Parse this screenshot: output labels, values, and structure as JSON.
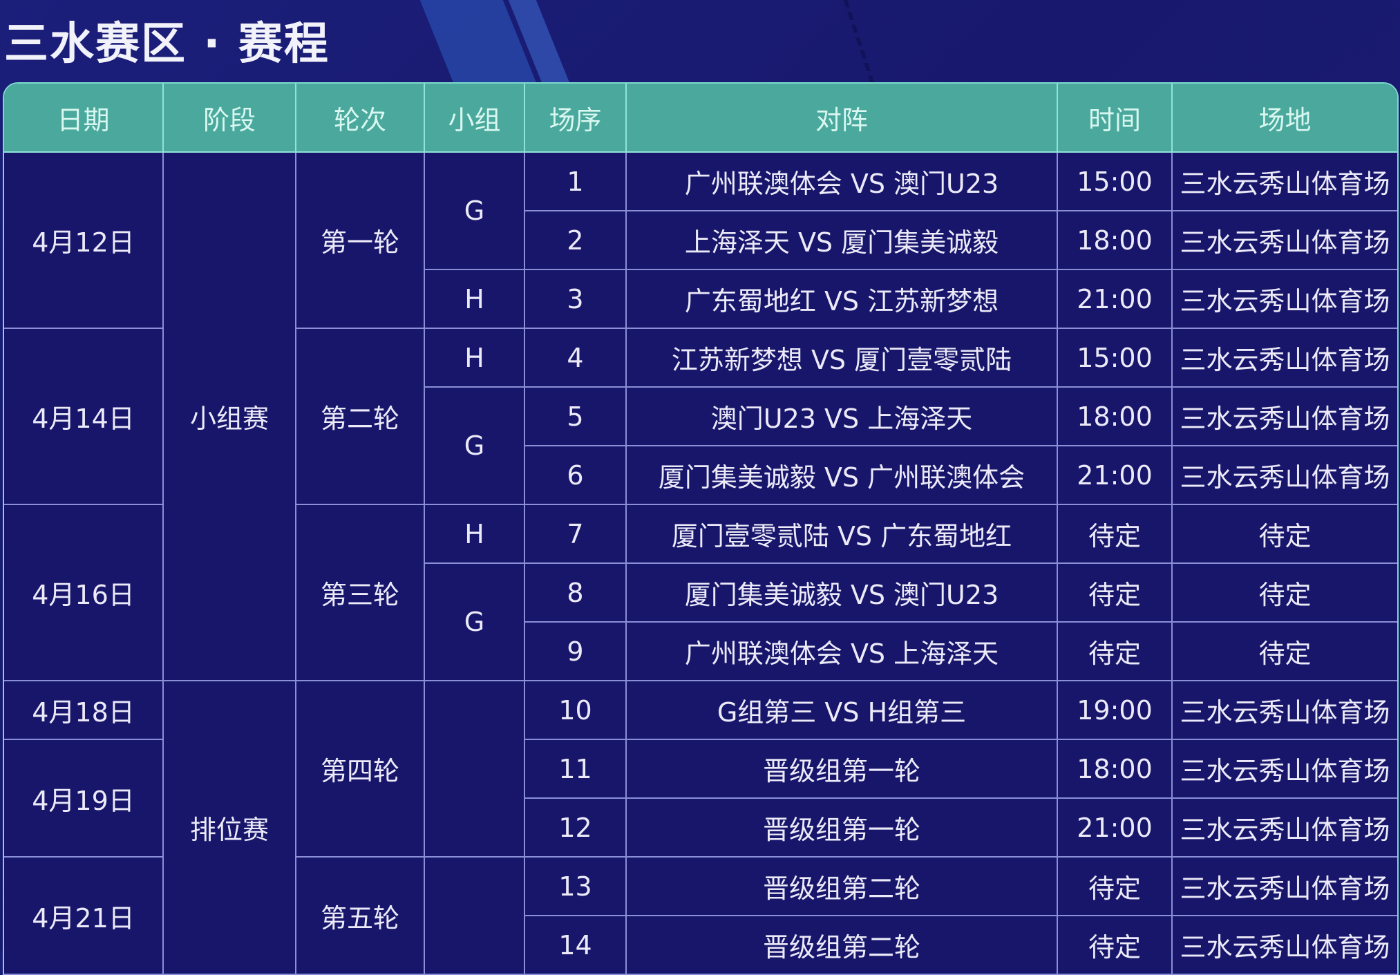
{
  "title": "三水赛区 · 赛程",
  "headers": [
    "日期",
    "阶段",
    "轮次",
    "小组",
    "场序",
    "对阵",
    "时间",
    "场地"
  ],
  "dates": [
    {
      "label": "4月12日",
      "span": 3
    },
    {
      "label": "4月14日",
      "span": 3
    },
    {
      "label": "4月16日",
      "span": 3
    },
    {
      "label": "4月18日",
      "span": 1
    },
    {
      "label": "4月19日",
      "span": 2
    },
    {
      "label": "4月21日",
      "span": 2
    }
  ],
  "stages": [
    {
      "label": "小组赛",
      "span": 9
    },
    {
      "label": "排位赛",
      "span": 5
    }
  ],
  "rounds": [
    {
      "label": "第一轮",
      "span": 3
    },
    {
      "label": "第二轮",
      "span": 3
    },
    {
      "label": "第三轮",
      "span": 3
    },
    {
      "label": "第四轮",
      "span": 3
    },
    {
      "label": "第五轮",
      "span": 2
    }
  ],
  "groups": [
    {
      "label": "G",
      "span": 2
    },
    {
      "label": "H",
      "span": 1
    },
    {
      "label": "H",
      "span": 1
    },
    {
      "label": "G",
      "span": 2
    },
    {
      "label": "H",
      "span": 1
    },
    {
      "label": "G",
      "span": 2
    },
    {
      "label": "",
      "span": 3
    },
    {
      "label": "",
      "span": 2
    }
  ],
  "matches": [
    {
      "no": "1",
      "match": "广州联澳体会 VS 澳门U23",
      "time": "15:00",
      "venue": "三水云秀山体育场"
    },
    {
      "no": "2",
      "match": "上海泽天 VS 厦门集美诚毅",
      "time": "18:00",
      "venue": "三水云秀山体育场"
    },
    {
      "no": "3",
      "match": "广东蜀地红 VS 江苏新梦想",
      "time": "21:00",
      "venue": "三水云秀山体育场"
    },
    {
      "no": "4",
      "match": "江苏新梦想 VS 厦门壹零贰陆",
      "time": "15:00",
      "venue": "三水云秀山体育场"
    },
    {
      "no": "5",
      "match": "澳门U23 VS 上海泽天",
      "time": "18:00",
      "venue": "三水云秀山体育场"
    },
    {
      "no": "6",
      "match": "厦门集美诚毅 VS 广州联澳体会",
      "time": "21:00",
      "venue": "三水云秀山体育场"
    },
    {
      "no": "7",
      "match": "厦门壹零贰陆 VS 广东蜀地红",
      "time": "待定",
      "venue": "待定"
    },
    {
      "no": "8",
      "match": "厦门集美诚毅 VS 澳门U23",
      "time": "待定",
      "venue": "待定"
    },
    {
      "no": "9",
      "match": "广州联澳体会 VS 上海泽天",
      "time": "待定",
      "venue": "待定"
    },
    {
      "no": "10",
      "match": "G组第三 VS H组第三",
      "time": "19:00",
      "venue": "三水云秀山体育场"
    },
    {
      "no": "11",
      "match": "晋级组第一轮",
      "time": "18:00",
      "venue": "三水云秀山体育场"
    },
    {
      "no": "12",
      "match": "晋级组第一轮",
      "time": "21:00",
      "venue": "三水云秀山体育场"
    },
    {
      "no": "13",
      "match": "晋级组第二轮",
      "time": "待定",
      "venue": "三水云秀山体育场"
    },
    {
      "no": "14",
      "match": "晋级组第二轮",
      "time": "待定",
      "venue": "三水云秀山体育场"
    }
  ],
  "colors": {
    "background": "#18196e",
    "header": "#4aa89c",
    "grid": "#8a8fd6",
    "text": "#eceaf8"
  }
}
